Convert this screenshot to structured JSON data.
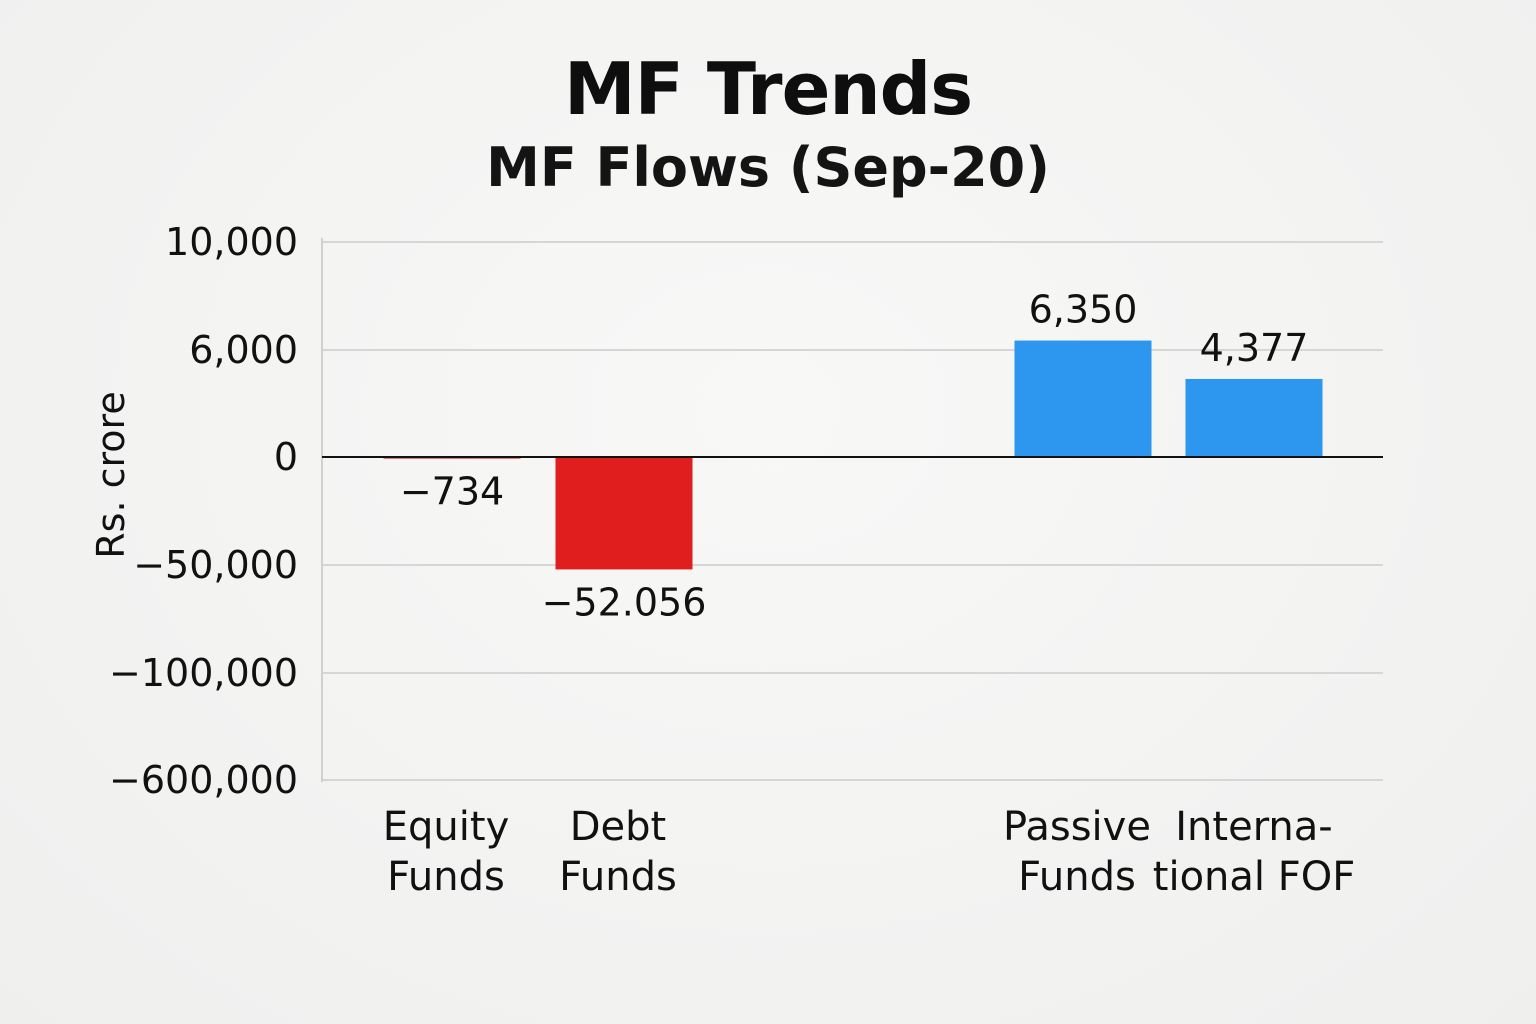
{
  "chart_data": {
    "type": "bar",
    "title": "MF Trends",
    "subtitle": "MF Flows (Sep-20)",
    "ylabel": "Rs. crore",
    "xlabel": "",
    "grid": true,
    "categories": [
      "Equity Funds",
      "Debt Funds",
      "",
      "Passive Funds",
      "International FOF"
    ],
    "category_lines": [
      [
        "Equity",
        "Funds"
      ],
      [
        "Debt",
        "Funds"
      ],
      [],
      [
        "Passive",
        "Funds"
      ],
      [
        "Interna-",
        "tional FOF"
      ]
    ],
    "values": [
      -734,
      -52056,
      null,
      6350,
      4377
    ],
    "data_labels": [
      "−734",
      "−52.056",
      "",
      "6,350",
      "4,377"
    ],
    "y_ticks": [
      10000,
      6000,
      0,
      -50000,
      -100000,
      -600000
    ],
    "y_tick_labels": [
      "10,000",
      "6,000",
      "0",
      "−50,000",
      "−100,000",
      "−600,000"
    ],
    "colors": {
      "negative": "#e01e1e",
      "positive": "#2d96ee",
      "gridline": "#d6d6d6",
      "zero_line": "#111111"
    }
  }
}
